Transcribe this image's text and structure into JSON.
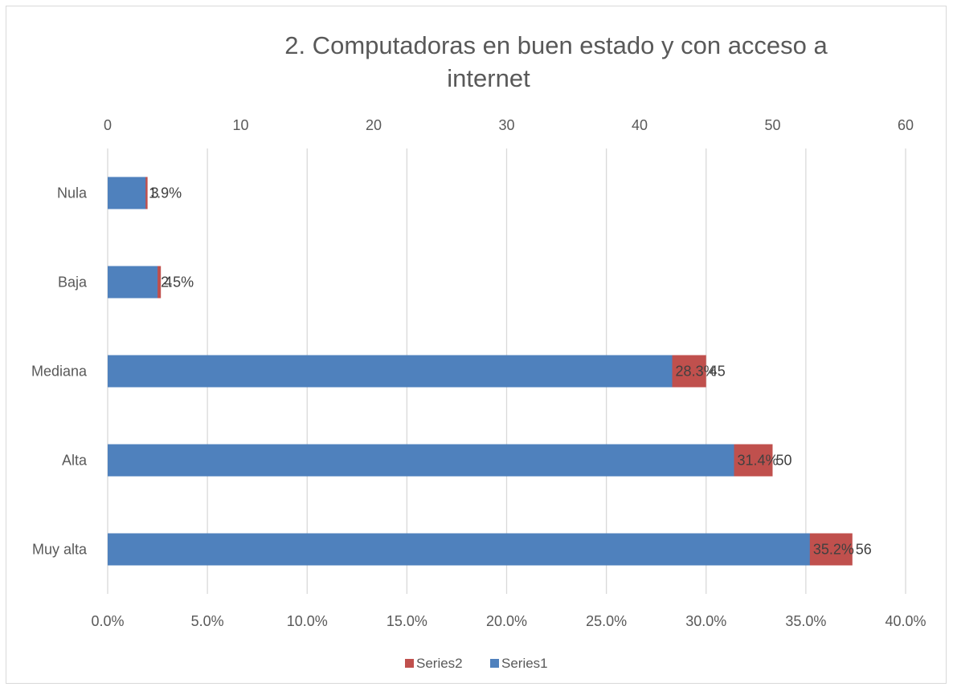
{
  "chart_data": {
    "type": "bar",
    "orientation": "horizontal",
    "title": "2. Computadoras en buen estado y con acceso a internet",
    "title_lines": [
      "2. Computadoras en buen estado y con acceso a",
      "internet"
    ],
    "categories": [
      "Nula",
      "Baja",
      "Mediana",
      "Alta",
      "Muy alta"
    ],
    "series": [
      {
        "name": "Series2",
        "axis": "top",
        "values": [
          3,
          4,
          45,
          50,
          56
        ],
        "labels": [
          "3",
          "4",
          "45",
          "50",
          "56"
        ],
        "color": "#c0504d"
      },
      {
        "name": "Series1",
        "axis": "bottom",
        "values": [
          1.9,
          2.5,
          28.3,
          31.4,
          35.2
        ],
        "labels": [
          "1.9%",
          "2.5%",
          "28.3%",
          "31.4%",
          "35.2%"
        ],
        "color": "#4f81bd"
      }
    ],
    "top_axis": {
      "ticks": [
        "0",
        "10",
        "20",
        "30",
        "40",
        "50",
        "60"
      ],
      "range": [
        0,
        60
      ]
    },
    "bottom_axis": {
      "ticks": [
        "0.0%",
        "5.0%",
        "10.0%",
        "15.0%",
        "20.0%",
        "25.0%",
        "30.0%",
        "35.0%",
        "40.0%"
      ],
      "range": [
        0,
        40
      ]
    },
    "grid": true,
    "legend": {
      "position": "bottom",
      "items": [
        "Series2",
        "Series1"
      ]
    }
  }
}
